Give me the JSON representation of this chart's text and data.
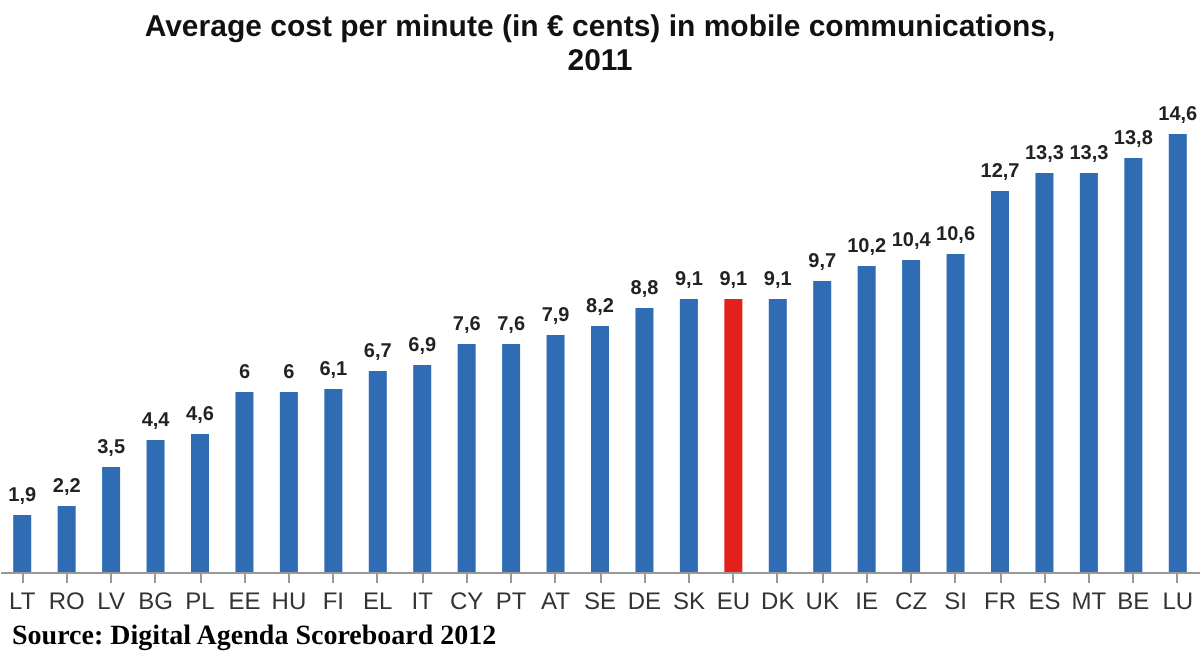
{
  "chart_data": {
    "type": "bar",
    "title": "Average cost per minute (in € cents) in mobile communications, 2011",
    "categories": [
      "LT",
      "RO",
      "LV",
      "BG",
      "PL",
      "EE",
      "HU",
      "FI",
      "EL",
      "IT",
      "CY",
      "PT",
      "AT",
      "SE",
      "DE",
      "SK",
      "EU",
      "DK",
      "UK",
      "IE",
      "CZ",
      "SI",
      "FR",
      "ES",
      "MT",
      "BE",
      "LU"
    ],
    "values": [
      1.9,
      2.2,
      3.5,
      4.4,
      4.6,
      6,
      6,
      6.1,
      6.7,
      6.9,
      7.6,
      7.6,
      7.9,
      8.2,
      8.8,
      9.1,
      9.1,
      9.1,
      9.7,
      10.2,
      10.4,
      10.6,
      12.7,
      13.3,
      13.3,
      13.8,
      14.6
    ],
    "value_labels": [
      "1,9",
      "2,2",
      "3,5",
      "4,4",
      "4,6",
      "6",
      "6",
      "6,1",
      "6,7",
      "6,9",
      "7,6",
      "7,6",
      "7,9",
      "8,2",
      "8,8",
      "9,1",
      "9,1",
      "9,1",
      "9,7",
      "10,2",
      "10,4",
      "10,6",
      "12,7",
      "13,3",
      "13,3",
      "13,8",
      "14,6"
    ],
    "colors": [
      "#2f6cb3",
      "#2f6cb3",
      "#2f6cb3",
      "#2f6cb3",
      "#2f6cb3",
      "#2f6cb3",
      "#2f6cb3",
      "#2f6cb3",
      "#2f6cb3",
      "#2f6cb3",
      "#2f6cb3",
      "#2f6cb3",
      "#2f6cb3",
      "#2f6cb3",
      "#2f6cb3",
      "#2f6cb3",
      "#e3201b",
      "#2f6cb3",
      "#2f6cb3",
      "#2f6cb3",
      "#2f6cb3",
      "#2f6cb3",
      "#2f6cb3",
      "#2f6cb3",
      "#2f6cb3",
      "#2f6cb3",
      "#2f6cb3"
    ],
    "tick_labels": "x",
    "annotations": [
      "Source: Digital Agenda Scoreboard 2012"
    ]
  }
}
